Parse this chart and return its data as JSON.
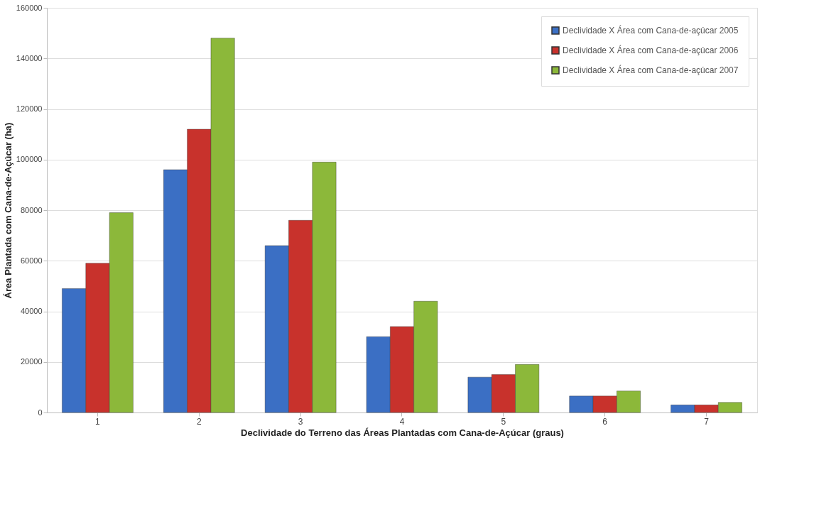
{
  "chart_data": {
    "type": "bar",
    "xlabel": "Declividade do Terreno das Áreas Plantadas com Cana-de-Açúcar (graus)",
    "ylabel": "Área Plantada com Cana-de-Açúcar (ha)",
    "categories": [
      "1",
      "2",
      "3",
      "4",
      "5",
      "6",
      "7"
    ],
    "series": [
      {
        "name": "Declividade X Área com Cana-de-açúcar 2005",
        "color": "#3b6fc4",
        "values": [
          49000,
          96000,
          66000,
          30000,
          14000,
          6500,
          3000
        ]
      },
      {
        "name": "Declividade X Área com Cana-de-açúcar 2006",
        "color": "#c8322c",
        "values": [
          59000,
          112000,
          76000,
          34000,
          15000,
          6500,
          3000
        ]
      },
      {
        "name": "Declividade X Área com Cana-de-açúcar 2007",
        "color": "#8cb83a",
        "values": [
          79000,
          148000,
          99000,
          44000,
          19000,
          8500,
          4000
        ]
      }
    ],
    "ylim": [
      0,
      160000
    ],
    "yticks": [
      0,
      20000,
      40000,
      60000,
      80000,
      100000,
      120000,
      140000,
      160000
    ],
    "grid": "y",
    "legend": "top right"
  }
}
